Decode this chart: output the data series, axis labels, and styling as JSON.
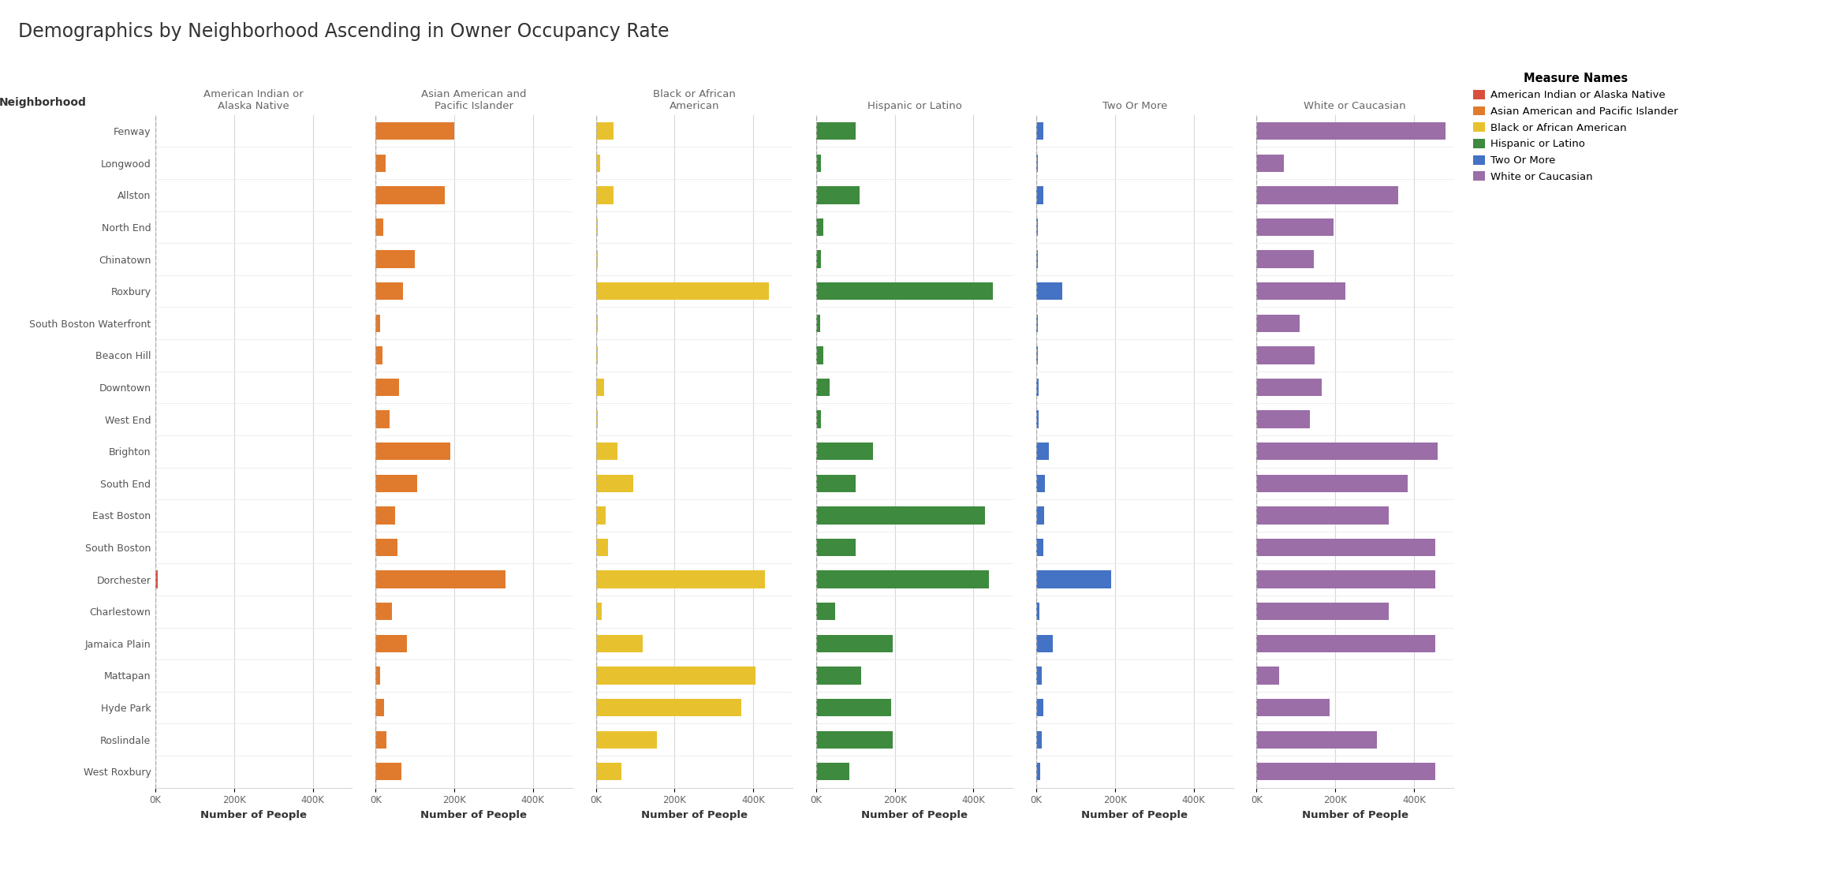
{
  "title": "Demographics by Neighborhood Ascending in Owner Occupancy Rate",
  "neighborhoods": [
    "Fenway",
    "Longwood",
    "Allston",
    "North End",
    "Chinatown",
    "Roxbury",
    "South Boston Waterfront",
    "Beacon Hill",
    "Downtown",
    "West End",
    "Brighton",
    "South End",
    "East Boston",
    "South Boston",
    "Dorchester",
    "Charlestown",
    "Jamaica Plain",
    "Mattapan",
    "Hyde Park",
    "Roslindale",
    "West Roxbury"
  ],
  "measures": [
    "American Indian or Alaska Native",
    "Asian American and Pacific Islander",
    "Black or African American",
    "Hispanic or Latino",
    "Two Or More",
    "White or Caucasian"
  ],
  "colors": {
    "American Indian or Alaska Native": "#d94f3d",
    "Asian American and Pacific Islander": "#e07b2e",
    "Black or African American": "#e8c22e",
    "Hispanic or Latino": "#3e8a3e",
    "Two Or More": "#4472c4",
    "White or Caucasian": "#9b6ea8"
  },
  "data": {
    "American Indian or Alaska Native": [
      0,
      0,
      0,
      0,
      0,
      0,
      0,
      0,
      0,
      0,
      0,
      0,
      0,
      0,
      5000,
      0,
      0,
      0,
      0,
      0,
      0
    ],
    "Asian American and Pacific Islander": [
      200000,
      25000,
      175000,
      20000,
      100000,
      70000,
      12000,
      18000,
      60000,
      35000,
      190000,
      105000,
      50000,
      55000,
      330000,
      42000,
      80000,
      12000,
      22000,
      28000,
      65000
    ],
    "Black or African American": [
      45000,
      10000,
      45000,
      5000,
      5000,
      440000,
      5000,
      5000,
      20000,
      5000,
      55000,
      95000,
      25000,
      30000,
      430000,
      15000,
      120000,
      405000,
      370000,
      155000,
      65000
    ],
    "Hispanic or Latino": [
      100000,
      12000,
      110000,
      18000,
      12000,
      450000,
      10000,
      18000,
      35000,
      12000,
      145000,
      100000,
      430000,
      100000,
      440000,
      48000,
      195000,
      115000,
      190000,
      195000,
      85000
    ],
    "Two Or More": [
      18000,
      4000,
      18000,
      4000,
      4000,
      65000,
      4000,
      4000,
      5000,
      5000,
      32000,
      22000,
      20000,
      18000,
      190000,
      8000,
      42000,
      14000,
      18000,
      14000,
      10000
    ],
    "White or Caucasian": [
      480000,
      70000,
      360000,
      195000,
      145000,
      225000,
      110000,
      148000,
      165000,
      135000,
      460000,
      385000,
      335000,
      455000,
      455000,
      335000,
      455000,
      58000,
      185000,
      305000,
      455000
    ]
  },
  "col_headers": [
    "American Indian or\nAlaska Native",
    "Asian American and\nPacific Islander",
    "Black or African\nAmerican",
    "Hispanic or Latino",
    "Two Or More",
    "White or Caucasian"
  ],
  "xlabel": "Number of People",
  "xlim": 500000,
  "xticks": [
    0,
    200000,
    400000
  ],
  "xticklabels": [
    "0K",
    "200K",
    "400K"
  ],
  "background_color": "#ffffff",
  "grid_color": "#d8d8d8",
  "separator_color": "#aaaaaa"
}
